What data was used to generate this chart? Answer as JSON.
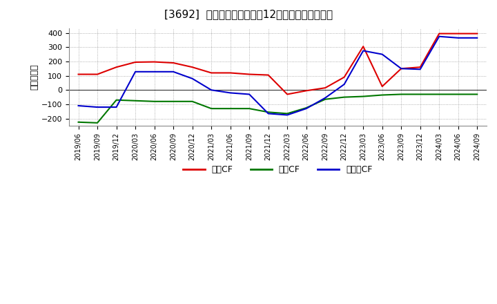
{
  "title": "[3692]  キャッシュフローの12か月移動合計の推移",
  "ylabel": "（百万円）",
  "background_color": "#ffffff",
  "plot_background_color": "#ffffff",
  "grid_color": "#999999",
  "x_labels": [
    "2019/06",
    "2019/09",
    "2019/12",
    "2020/03",
    "2020/06",
    "2020/09",
    "2020/12",
    "2021/03",
    "2021/06",
    "2021/09",
    "2021/12",
    "2022/03",
    "2022/06",
    "2022/09",
    "2022/12",
    "2023/03",
    "2023/06",
    "2023/09",
    "2023/12",
    "2024/03",
    "2024/06",
    "2024/09"
  ],
  "eigyo_cf": [
    110,
    110,
    160,
    195,
    197,
    190,
    160,
    120,
    120,
    110,
    105,
    -30,
    -5,
    15,
    90,
    305,
    25,
    150,
    160,
    395,
    395,
    395
  ],
  "toshi_cf": [
    -225,
    -230,
    -70,
    -75,
    -80,
    -80,
    -80,
    -130,
    -130,
    -130,
    -155,
    -165,
    -125,
    -65,
    -50,
    -45,
    -35,
    -30,
    -30,
    -30,
    -30,
    -30
  ],
  "free_cf": [
    -110,
    -120,
    -120,
    128,
    128,
    128,
    80,
    0,
    -20,
    -30,
    -165,
    -175,
    -130,
    -55,
    40,
    275,
    250,
    150,
    145,
    375,
    365,
    365
  ],
  "color_eigyo": "#dd0000",
  "color_toshi": "#007700",
  "color_free": "#0000cc",
  "label_eigyo": "営業CF",
  "label_toshi": "投資CF",
  "label_free": "フリーCF",
  "ylim": [
    -250,
    430
  ],
  "yticks": [
    -200,
    -100,
    0,
    100,
    200,
    300,
    400
  ],
  "linewidth": 1.5
}
